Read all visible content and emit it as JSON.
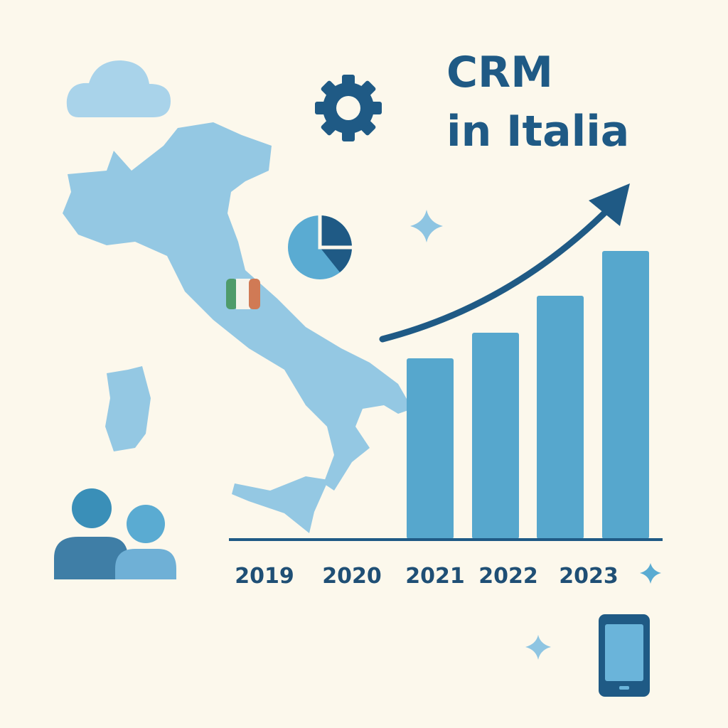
{
  "title": {
    "line1": "CRM",
    "line2": "in Italia"
  },
  "years": [
    "2019",
    "2020",
    "2021",
    "2022",
    "2023"
  ]
}
